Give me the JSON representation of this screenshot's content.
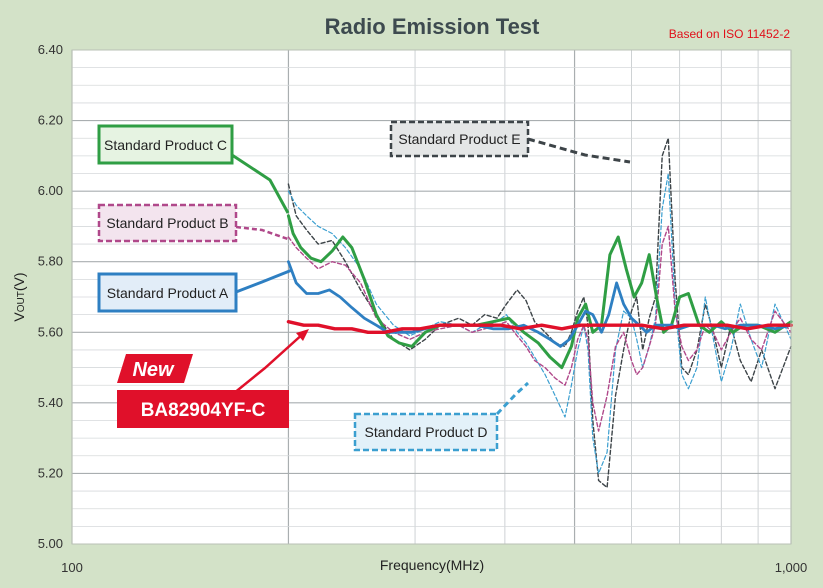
{
  "chart_data": {
    "type": "line",
    "title": "Radio Emission Test",
    "note": "Based on ISO 11452-2",
    "xlabel": "Frequency(MHz)",
    "ylabel_main": "V",
    "ylabel_sub": "OUT",
    "ylabel_unit": "(V)",
    "xscale": "log",
    "xlim": [
      100,
      1000
    ],
    "ylim": [
      5.0,
      6.4
    ],
    "grid": true,
    "x_ticks": [
      {
        "value": 100,
        "label": "100"
      },
      {
        "value": 1000,
        "label": "1,000"
      }
    ],
    "y_ticks": [
      {
        "value": 5.0,
        "label": "5.00"
      },
      {
        "value": 5.2,
        "label": "5.20"
      },
      {
        "value": 5.4,
        "label": "5.40"
      },
      {
        "value": 5.6,
        "label": "5.60"
      },
      {
        "value": 5.8,
        "label": "5.80"
      },
      {
        "value": 6.0,
        "label": "6.00"
      },
      {
        "value": 6.2,
        "label": "6.20"
      },
      {
        "value": 6.4,
        "label": "6.40"
      }
    ],
    "series": [
      {
        "name": "Standard Product E",
        "color": "#3d4448",
        "style": "dashed",
        "width": 1.4,
        "x": [
          200,
          205,
          212,
          220,
          230,
          240,
          252,
          265,
          280,
          295,
          310,
          325,
          345,
          360,
          375,
          390,
          402,
          416,
          428,
          440,
          455,
          470,
          485,
          495,
          505,
          515,
          522,
          530,
          540,
          555,
          570,
          585,
          600,
          610,
          622,
          635,
          648,
          662,
          675,
          690,
          705,
          720,
          740,
          760,
          780,
          800,
          825,
          850,
          880,
          910,
          950,
          1000
        ],
        "y": [
          6.02,
          5.93,
          5.89,
          5.85,
          5.86,
          5.8,
          5.72,
          5.65,
          5.58,
          5.55,
          5.58,
          5.62,
          5.64,
          5.62,
          5.65,
          5.64,
          5.68,
          5.72,
          5.69,
          5.63,
          5.6,
          5.57,
          5.56,
          5.6,
          5.66,
          5.7,
          5.62,
          5.35,
          5.18,
          5.16,
          5.42,
          5.55,
          5.66,
          5.7,
          5.55,
          5.64,
          5.7,
          6.1,
          6.15,
          5.75,
          5.5,
          5.48,
          5.55,
          5.68,
          5.6,
          5.5,
          5.62,
          5.52,
          5.46,
          5.55,
          5.44,
          5.56
        ]
      },
      {
        "name": "Standard Product D",
        "color": "#3b9fd0",
        "style": "dashed",
        "width": 1.2,
        "x": [
          200,
          205,
          212,
          220,
          230,
          240,
          252,
          265,
          280,
          295,
          310,
          325,
          345,
          360,
          375,
          390,
          402,
          416,
          428,
          440,
          455,
          470,
          485,
          495,
          505,
          515,
          522,
          530,
          540,
          555,
          570,
          585,
          600,
          610,
          622,
          635,
          648,
          662,
          675,
          690,
          705,
          720,
          740,
          760,
          780,
          800,
          825,
          850,
          880,
          910,
          950,
          1000
        ],
        "y": [
          6.0,
          5.96,
          5.93,
          5.9,
          5.88,
          5.84,
          5.78,
          5.68,
          5.62,
          5.59,
          5.61,
          5.63,
          5.62,
          5.6,
          5.62,
          5.63,
          5.65,
          5.6,
          5.57,
          5.53,
          5.48,
          5.42,
          5.36,
          5.45,
          5.55,
          5.62,
          5.55,
          5.3,
          5.2,
          5.26,
          5.55,
          5.66,
          5.64,
          5.58,
          5.5,
          5.56,
          5.64,
          5.95,
          6.05,
          5.68,
          5.48,
          5.44,
          5.5,
          5.7,
          5.58,
          5.46,
          5.55,
          5.68,
          5.58,
          5.5,
          5.68,
          5.58
        ]
      },
      {
        "name": "Standard Product B",
        "color": "#b0488a",
        "style": "dashed",
        "width": 1.4,
        "x": [
          200,
          205,
          212,
          220,
          230,
          240,
          252,
          265,
          280,
          295,
          310,
          325,
          345,
          360,
          375,
          390,
          402,
          416,
          428,
          440,
          455,
          470,
          485,
          495,
          505,
          515,
          522,
          530,
          540,
          555,
          570,
          585,
          600,
          610,
          622,
          635,
          648,
          662,
          675,
          690,
          705,
          720,
          740,
          760,
          780,
          800,
          825,
          850,
          880,
          910,
          950,
          1000
        ],
        "y": [
          5.87,
          5.84,
          5.81,
          5.78,
          5.8,
          5.79,
          5.74,
          5.64,
          5.6,
          5.58,
          5.6,
          5.61,
          5.62,
          5.6,
          5.61,
          5.62,
          5.63,
          5.59,
          5.56,
          5.52,
          5.5,
          5.47,
          5.45,
          5.5,
          5.58,
          5.62,
          5.58,
          5.4,
          5.32,
          5.42,
          5.56,
          5.6,
          5.52,
          5.48,
          5.5,
          5.56,
          5.62,
          5.85,
          5.9,
          5.66,
          5.56,
          5.52,
          5.55,
          5.62,
          5.6,
          5.55,
          5.6,
          5.64,
          5.58,
          5.55,
          5.66,
          5.6
        ]
      },
      {
        "name": "Standard Product C",
        "color": "#2f9e44",
        "style": "solid",
        "width": 3,
        "x": [
          200,
          203,
          208,
          215,
          222,
          230,
          238,
          245,
          255,
          265,
          275,
          285,
          297,
          310,
          325,
          345,
          365,
          385,
          405,
          425,
          445,
          462,
          480,
          495,
          505,
          518,
          530,
          545,
          560,
          575,
          590,
          605,
          620,
          635,
          650,
          665,
          682,
          700,
          720,
          745,
          770,
          800,
          830,
          860,
          900,
          950,
          1000
        ],
        "y": [
          5.93,
          5.88,
          5.84,
          5.81,
          5.8,
          5.83,
          5.87,
          5.84,
          5.75,
          5.65,
          5.59,
          5.57,
          5.56,
          5.6,
          5.62,
          5.62,
          5.62,
          5.63,
          5.64,
          5.6,
          5.57,
          5.53,
          5.5,
          5.56,
          5.64,
          5.68,
          5.6,
          5.62,
          5.82,
          5.87,
          5.78,
          5.7,
          5.74,
          5.82,
          5.7,
          5.6,
          5.62,
          5.7,
          5.71,
          5.62,
          5.6,
          5.63,
          5.6,
          5.62,
          5.62,
          5.6,
          5.63
        ]
      },
      {
        "name": "Standard Product A",
        "color": "#2e7fc2",
        "style": "solid",
        "width": 2.8,
        "x": [
          200,
          205,
          212,
          220,
          228,
          236,
          245,
          255,
          265,
          275,
          285,
          297,
          310,
          325,
          345,
          365,
          385,
          405,
          425,
          445,
          462,
          478,
          492,
          505,
          518,
          530,
          545,
          558,
          572,
          585,
          600,
          615,
          630,
          648,
          665,
          682,
          700,
          725,
          750,
          780,
          810,
          850,
          900,
          950,
          1000
        ],
        "y": [
          5.8,
          5.74,
          5.71,
          5.71,
          5.72,
          5.7,
          5.67,
          5.64,
          5.62,
          5.6,
          5.6,
          5.6,
          5.61,
          5.62,
          5.62,
          5.62,
          5.61,
          5.61,
          5.62,
          5.6,
          5.58,
          5.56,
          5.58,
          5.62,
          5.66,
          5.65,
          5.6,
          5.65,
          5.74,
          5.68,
          5.64,
          5.62,
          5.6,
          5.62,
          5.62,
          5.62,
          5.61,
          5.62,
          5.62,
          5.62,
          5.61,
          5.62,
          5.62,
          5.61,
          5.62
        ]
      },
      {
        "name": "BA82904YF-C",
        "color": "#e0102a",
        "style": "solid",
        "width": 3.4,
        "x": [
          200,
          210,
          220,
          232,
          245,
          258,
          272,
          288,
          305,
          325,
          345,
          370,
          395,
          420,
          450,
          480,
          510,
          545,
          580,
          620,
          665,
          710,
          760,
          815,
          870,
          930,
          1000
        ],
        "y": [
          5.63,
          5.62,
          5.62,
          5.61,
          5.61,
          5.6,
          5.6,
          5.61,
          5.61,
          5.62,
          5.62,
          5.62,
          5.62,
          5.61,
          5.62,
          5.61,
          5.62,
          5.62,
          5.62,
          5.62,
          5.61,
          5.62,
          5.62,
          5.62,
          5.61,
          5.62,
          5.62
        ]
      }
    ],
    "callouts": [
      {
        "label": "Standard Product C",
        "series": "Standard Product C"
      },
      {
        "label": "Standard Product B",
        "series": "Standard Product B"
      },
      {
        "label": "Standard Product A",
        "series": "Standard Product A"
      },
      {
        "label": "Standard Product E",
        "series": "Standard Product E"
      },
      {
        "label": "Standard Product D",
        "series": "Standard Product D"
      }
    ],
    "new_badge": "New",
    "new_product": "BA82904YF-C"
  },
  "colors": {
    "background": "#d3e2c8",
    "plot_background": "#ffffff",
    "accent_red": "#e0102a"
  }
}
